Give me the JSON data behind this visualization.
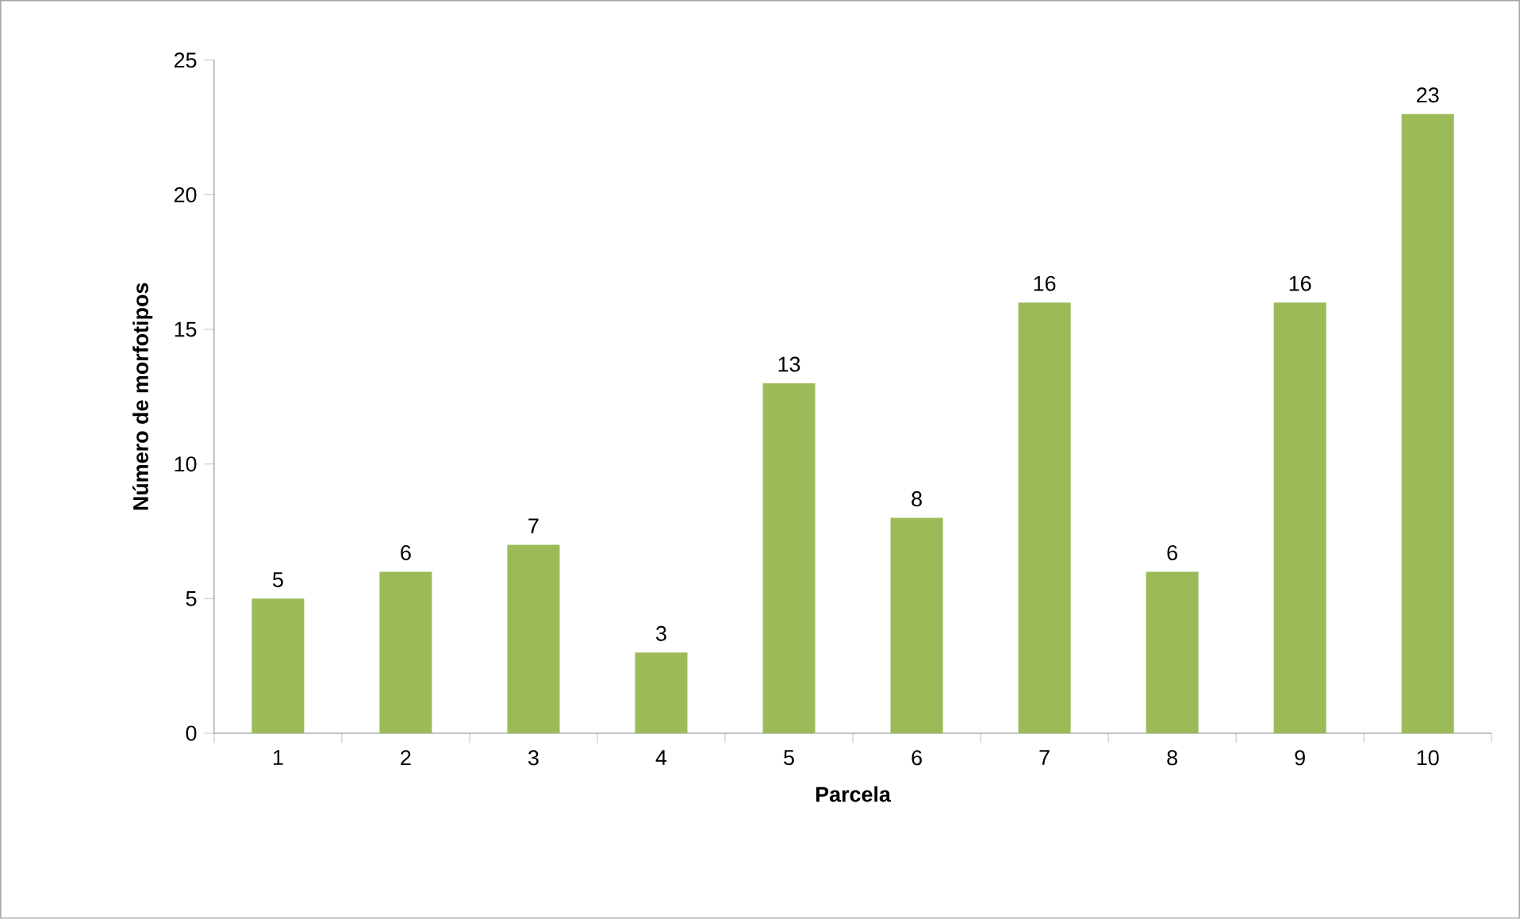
{
  "chart_data": {
    "type": "bar",
    "xlabel": "Parcela",
    "ylabel": "Número de morfotipos",
    "categories": [
      "1",
      "2",
      "3",
      "4",
      "5",
      "6",
      "7",
      "8",
      "9",
      "10"
    ],
    "values": [
      5,
      6,
      7,
      3,
      13,
      8,
      16,
      6,
      16,
      23
    ],
    "color": "#9bbb59",
    "ylim": [
      0,
      25
    ],
    "yticks": [
      0,
      5,
      10,
      15,
      20,
      25
    ],
    "data_labels": true,
    "grid": false
  }
}
